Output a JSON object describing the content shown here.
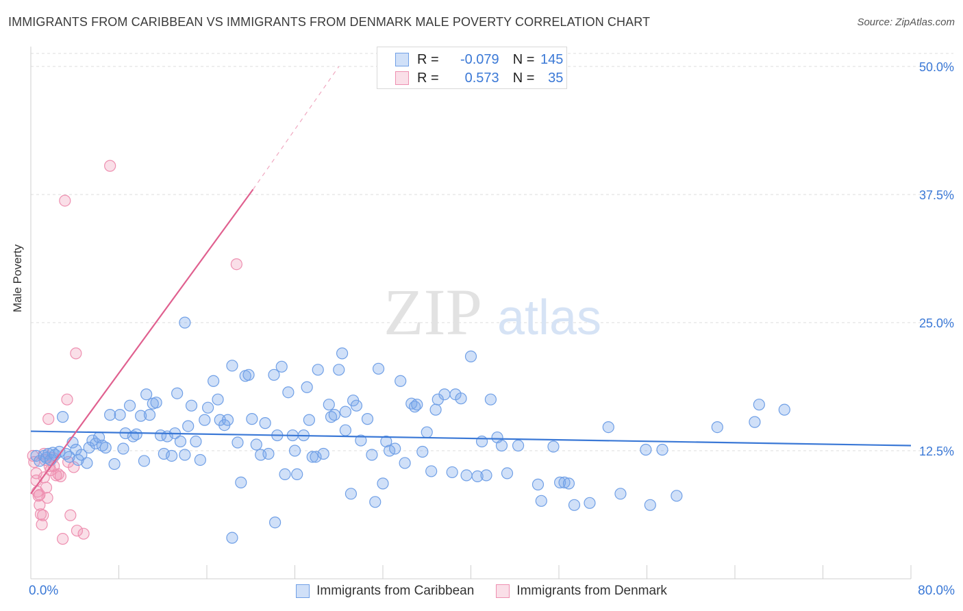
{
  "title": "IMMIGRANTS FROM CARIBBEAN VS IMMIGRANTS FROM DENMARK MALE POVERTY CORRELATION CHART",
  "source": "Source: ZipAtlas.com",
  "watermark": {
    "zip": "ZIP",
    "atlas": "atlas"
  },
  "legend_top": {
    "rows": [
      {
        "r_label": "R =",
        "r_value": "-0.079",
        "n_label": "N =",
        "n_value": "145"
      },
      {
        "r_label": "R =",
        "r_value": "0.573",
        "n_label": "N =",
        "n_value": "35"
      }
    ]
  },
  "colors": {
    "blue": "#3a78d6",
    "blue_fill": "rgba(120,165,235,0.35)",
    "blue_stroke": "#6f9fe6",
    "pink": "#e0608f",
    "pink_fill": "rgba(240,150,180,0.30)",
    "pink_stroke": "#ee8fb0",
    "grid": "#dcdcdc",
    "tick_text": "#3a78d6"
  },
  "chart_data": {
    "type": "scatter",
    "title": "IMMIGRANTS FROM CARIBBEAN VS IMMIGRANTS FROM DENMARK MALE POVERTY CORRELATION CHART",
    "xlabel": "",
    "ylabel": "Male Poverty",
    "xlim": [
      0,
      80
    ],
    "ylim": [
      0,
      50
    ],
    "x_ticks": [
      "0.0%",
      "80.0%"
    ],
    "y_ticks": [
      {
        "value": 12.5,
        "label": "12.5%"
      },
      {
        "value": 25.0,
        "label": "25.0%"
      },
      {
        "value": 37.5,
        "label": "37.5%"
      },
      {
        "value": 50.0,
        "label": "50.0%"
      }
    ],
    "grid": true,
    "legend_position": "bottom",
    "series": [
      {
        "name": "Immigrants from Caribbean",
        "color": "#3a78d6",
        "trend": {
          "x": [
            0,
            80
          ],
          "y": [
            14.4,
            13.0
          ],
          "style": "solid"
        },
        "points": [
          [
            0.5,
            12.0
          ],
          [
            0.8,
            11.5
          ],
          [
            1.2,
            12.0
          ],
          [
            1.4,
            11.8
          ],
          [
            1.6,
            12.2
          ],
          [
            1.8,
            11.6
          ],
          [
            2.0,
            12.3
          ],
          [
            2.2,
            12.1
          ],
          [
            2.6,
            12.4
          ],
          [
            2.9,
            15.8
          ],
          [
            3.2,
            12.2
          ],
          [
            3.5,
            11.9
          ],
          [
            3.8,
            13.3
          ],
          [
            4.1,
            12.6
          ],
          [
            4.3,
            11.6
          ],
          [
            4.6,
            12.1
          ],
          [
            5.1,
            11.3
          ],
          [
            5.3,
            12.8
          ],
          [
            5.6,
            13.5
          ],
          [
            5.9,
            13.2
          ],
          [
            6.2,
            13.8
          ],
          [
            6.5,
            13.0
          ],
          [
            6.8,
            12.8
          ],
          [
            7.2,
            16.0
          ],
          [
            7.6,
            11.2
          ],
          [
            8.1,
            16.0
          ],
          [
            8.4,
            12.7
          ],
          [
            8.6,
            14.2
          ],
          [
            9.0,
            16.9
          ],
          [
            9.3,
            13.9
          ],
          [
            9.6,
            14.1
          ],
          [
            10.0,
            15.9
          ],
          [
            10.3,
            11.5
          ],
          [
            10.5,
            18.0
          ],
          [
            10.8,
            16.0
          ],
          [
            11.1,
            17.1
          ],
          [
            11.4,
            17.2
          ],
          [
            11.8,
            14.0
          ],
          [
            12.1,
            12.2
          ],
          [
            12.4,
            13.9
          ],
          [
            12.8,
            12.0
          ],
          [
            13.1,
            14.2
          ],
          [
            13.3,
            18.1
          ],
          [
            13.6,
            13.4
          ],
          [
            14.0,
            12.1
          ],
          [
            14.3,
            14.9
          ],
          [
            14.6,
            16.9
          ],
          [
            15.0,
            13.4
          ],
          [
            15.4,
            11.6
          ],
          [
            15.8,
            15.5
          ],
          [
            16.1,
            16.7
          ],
          [
            16.6,
            19.3
          ],
          [
            17.0,
            17.5
          ],
          [
            17.2,
            15.5
          ],
          [
            17.6,
            15.0
          ],
          [
            17.9,
            15.5
          ],
          [
            18.3,
            20.8
          ],
          [
            18.8,
            13.3
          ],
          [
            19.1,
            9.4
          ],
          [
            19.5,
            19.8
          ],
          [
            19.8,
            19.9
          ],
          [
            20.1,
            15.6
          ],
          [
            20.5,
            13.1
          ],
          [
            20.9,
            12.1
          ],
          [
            21.3,
            15.2
          ],
          [
            21.6,
            12.2
          ],
          [
            22.1,
            19.9
          ],
          [
            22.4,
            14.0
          ],
          [
            22.8,
            20.7
          ],
          [
            23.1,
            10.2
          ],
          [
            23.4,
            18.2
          ],
          [
            23.8,
            14.0
          ],
          [
            24.0,
            12.5
          ],
          [
            24.2,
            10.2
          ],
          [
            24.8,
            14.0
          ],
          [
            25.1,
            18.7
          ],
          [
            25.3,
            15.5
          ],
          [
            25.6,
            11.9
          ],
          [
            25.9,
            11.9
          ],
          [
            26.1,
            20.4
          ],
          [
            26.6,
            12.2
          ],
          [
            27.1,
            17.0
          ],
          [
            27.3,
            15.8
          ],
          [
            27.6,
            16.0
          ],
          [
            28.0,
            20.4
          ],
          [
            28.3,
            22.0
          ],
          [
            28.6,
            16.3
          ],
          [
            29.1,
            8.3
          ],
          [
            29.3,
            17.4
          ],
          [
            29.6,
            16.9
          ],
          [
            30.0,
            13.5
          ],
          [
            30.6,
            15.6
          ],
          [
            31.0,
            12.1
          ],
          [
            31.3,
            7.5
          ],
          [
            31.6,
            20.5
          ],
          [
            32.0,
            9.3
          ],
          [
            32.3,
            13.4
          ],
          [
            32.6,
            12.5
          ],
          [
            33.1,
            12.7
          ],
          [
            33.6,
            19.3
          ],
          [
            34.0,
            11.3
          ],
          [
            34.6,
            17.1
          ],
          [
            34.9,
            16.8
          ],
          [
            35.1,
            17.0
          ],
          [
            35.6,
            12.4
          ],
          [
            36.0,
            14.3
          ],
          [
            36.4,
            10.5
          ],
          [
            36.8,
            16.5
          ],
          [
            37.0,
            17.5
          ],
          [
            37.6,
            18.0
          ],
          [
            38.3,
            10.4
          ],
          [
            38.6,
            18.0
          ],
          [
            39.1,
            17.6
          ],
          [
            39.6,
            10.1
          ],
          [
            40.0,
            21.7
          ],
          [
            40.6,
            10.0
          ],
          [
            41.0,
            13.4
          ],
          [
            41.4,
            10.1
          ],
          [
            41.8,
            17.5
          ],
          [
            42.4,
            13.8
          ],
          [
            42.8,
            13.0
          ],
          [
            43.3,
            10.3
          ],
          [
            44.3,
            13.0
          ],
          [
            46.1,
            9.2
          ],
          [
            46.4,
            7.6
          ],
          [
            47.5,
            12.9
          ],
          [
            48.1,
            9.4
          ],
          [
            48.5,
            9.4
          ],
          [
            48.9,
            9.3
          ],
          [
            49.4,
            7.2
          ],
          [
            50.8,
            7.4
          ],
          [
            52.5,
            14.8
          ],
          [
            53.6,
            8.3
          ],
          [
            55.9,
            12.6
          ],
          [
            56.3,
            7.2
          ],
          [
            57.4,
            12.6
          ],
          [
            58.7,
            8.1
          ],
          [
            62.4,
            14.8
          ],
          [
            65.8,
            15.3
          ],
          [
            66.2,
            17.0
          ],
          [
            68.5,
            16.5
          ],
          [
            22.2,
            5.5
          ],
          [
            18.3,
            4.0
          ],
          [
            28.6,
            14.5
          ],
          [
            14.0,
            25.0
          ]
        ]
      },
      {
        "name": "Immigrants from Denmark",
        "color": "#e0608f",
        "trend": {
          "x": [
            0,
            20.2
          ],
          "y": [
            8.3,
            38.0
          ],
          "style": "solid",
          "extension": {
            "x": [
              20.2,
              28.0
            ],
            "y": [
              38.0,
              50.0
            ],
            "style": "dashed"
          }
        },
        "points": [
          [
            0.2,
            12.0
          ],
          [
            0.3,
            11.4
          ],
          [
            0.5,
            10.3
          ],
          [
            0.5,
            9.6
          ],
          [
            0.6,
            8.5
          ],
          [
            0.7,
            8.1
          ],
          [
            0.8,
            7.2
          ],
          [
            0.9,
            6.3
          ],
          [
            1.0,
            5.3
          ],
          [
            1.1,
            6.2
          ],
          [
            1.2,
            9.9
          ],
          [
            1.3,
            11.6
          ],
          [
            1.4,
            8.9
          ],
          [
            1.5,
            7.9
          ],
          [
            1.6,
            15.6
          ],
          [
            1.7,
            11.0
          ],
          [
            1.8,
            10.6
          ],
          [
            2.0,
            11.8
          ],
          [
            2.1,
            11.0
          ],
          [
            2.3,
            10.1
          ],
          [
            2.5,
            10.2
          ],
          [
            2.7,
            10.0
          ],
          [
            2.9,
            3.9
          ],
          [
            3.1,
            36.9
          ],
          [
            3.3,
            17.5
          ],
          [
            3.4,
            11.4
          ],
          [
            3.6,
            6.2
          ],
          [
            3.9,
            10.9
          ],
          [
            4.2,
            4.7
          ],
          [
            4.1,
            22.0
          ],
          [
            4.8,
            4.4
          ],
          [
            7.2,
            40.3
          ],
          [
            18.7,
            30.7
          ],
          [
            0.8,
            8.2
          ],
          [
            1.2,
            12.2
          ]
        ]
      }
    ]
  }
}
